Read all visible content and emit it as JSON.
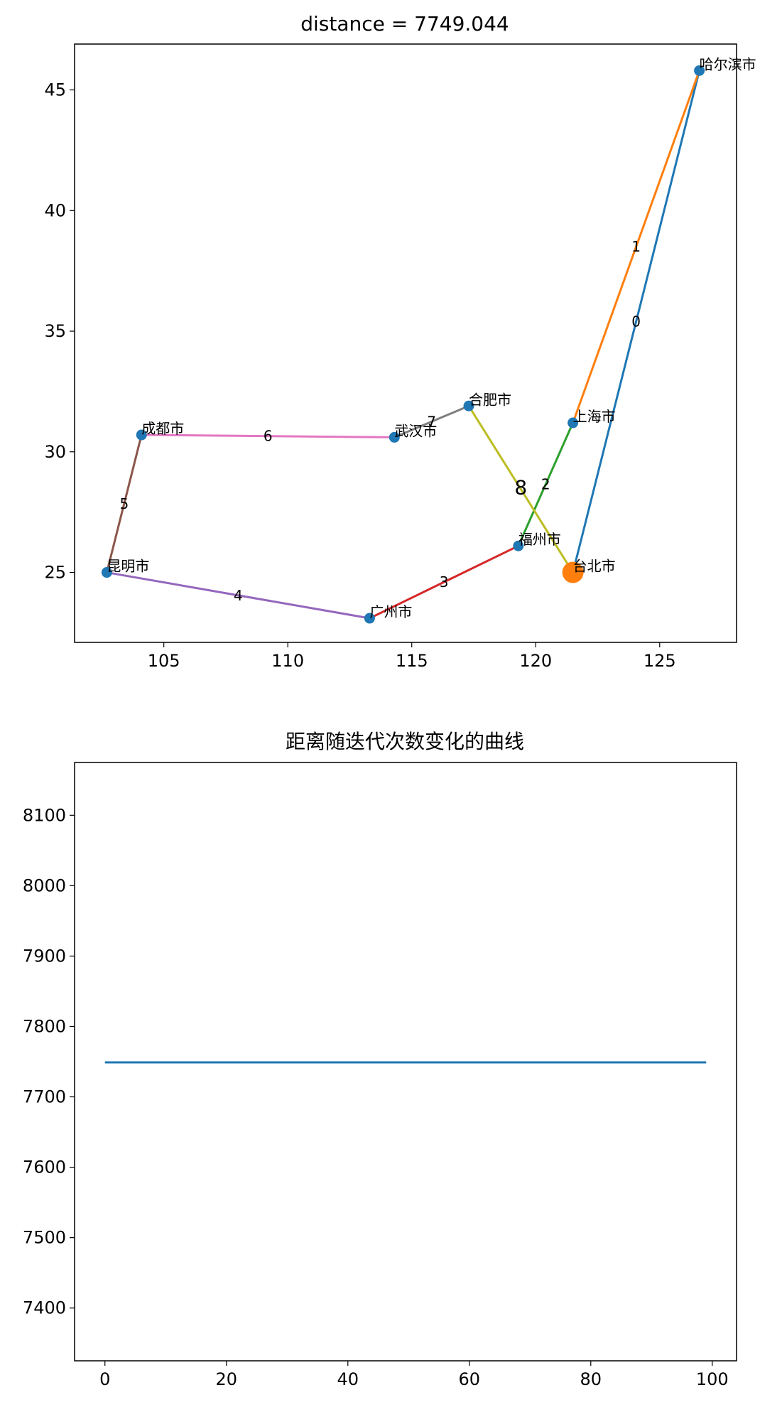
{
  "chart_data": [
    {
      "type": "line",
      "title": "distance = 7749.044",
      "xlabel": "",
      "ylabel": "",
      "xlim": [
        101.4,
        128.1
      ],
      "ylim": [
        22.1,
        46.9
      ],
      "xticks": [
        105,
        110,
        115,
        120,
        125
      ],
      "yticks": [
        25,
        30,
        35,
        40,
        45
      ],
      "grid": false,
      "cities": [
        {
          "name": "台北市",
          "x": 121.5,
          "y": 25.0
        },
        {
          "name": "哈尔滨市",
          "x": 126.6,
          "y": 45.8
        },
        {
          "name": "上海市",
          "x": 121.5,
          "y": 31.2
        },
        {
          "name": "福州市",
          "x": 119.3,
          "y": 26.1
        },
        {
          "name": "广州市",
          "x": 113.3,
          "y": 23.1
        },
        {
          "name": "昆明市",
          "x": 102.7,
          "y": 25.0
        },
        {
          "name": "成都市",
          "x": 104.1,
          "y": 30.7
        },
        {
          "name": "武汉市",
          "x": 114.3,
          "y": 30.6
        },
        {
          "name": "合肥市",
          "x": 117.3,
          "y": 31.9
        }
      ],
      "route": [
        {
          "label": "0",
          "from": 0,
          "to": 1,
          "color": "#1f77b4"
        },
        {
          "label": "1",
          "from": 1,
          "to": 2,
          "color": "#ff7f0e"
        },
        {
          "label": "2",
          "from": 2,
          "to": 3,
          "color": "#2ca02c"
        },
        {
          "label": "3",
          "from": 3,
          "to": 4,
          "color": "#d62728"
        },
        {
          "label": "4",
          "from": 4,
          "to": 5,
          "color": "#9467bd"
        },
        {
          "label": "5",
          "from": 5,
          "to": 6,
          "color": "#8c564b"
        },
        {
          "label": "6",
          "from": 6,
          "to": 7,
          "color": "#e377c2"
        },
        {
          "label": "7",
          "from": 7,
          "to": 8,
          "color": "#7f7f7f"
        },
        {
          "label": "8",
          "from": 8,
          "to": 0,
          "color": "#bcbd22"
        }
      ],
      "point_color": "#1f77b4",
      "start_marker": {
        "city": 0,
        "color": "#ff7f0e"
      }
    },
    {
      "type": "line",
      "title": "距离随迭代次数变化的曲线",
      "xlabel": "",
      "ylabel": "",
      "xlim": [
        -5,
        104
      ],
      "ylim": [
        7325,
        8175
      ],
      "xticks": [
        0,
        20,
        40,
        60,
        80,
        100
      ],
      "yticks": [
        7400,
        7500,
        7600,
        7700,
        7800,
        7900,
        8000,
        8100
      ],
      "grid": false,
      "series": [
        {
          "x": [
            0,
            99
          ],
          "y": [
            7749.044,
            7749.044
          ],
          "color": "#1f77b4"
        }
      ]
    }
  ]
}
